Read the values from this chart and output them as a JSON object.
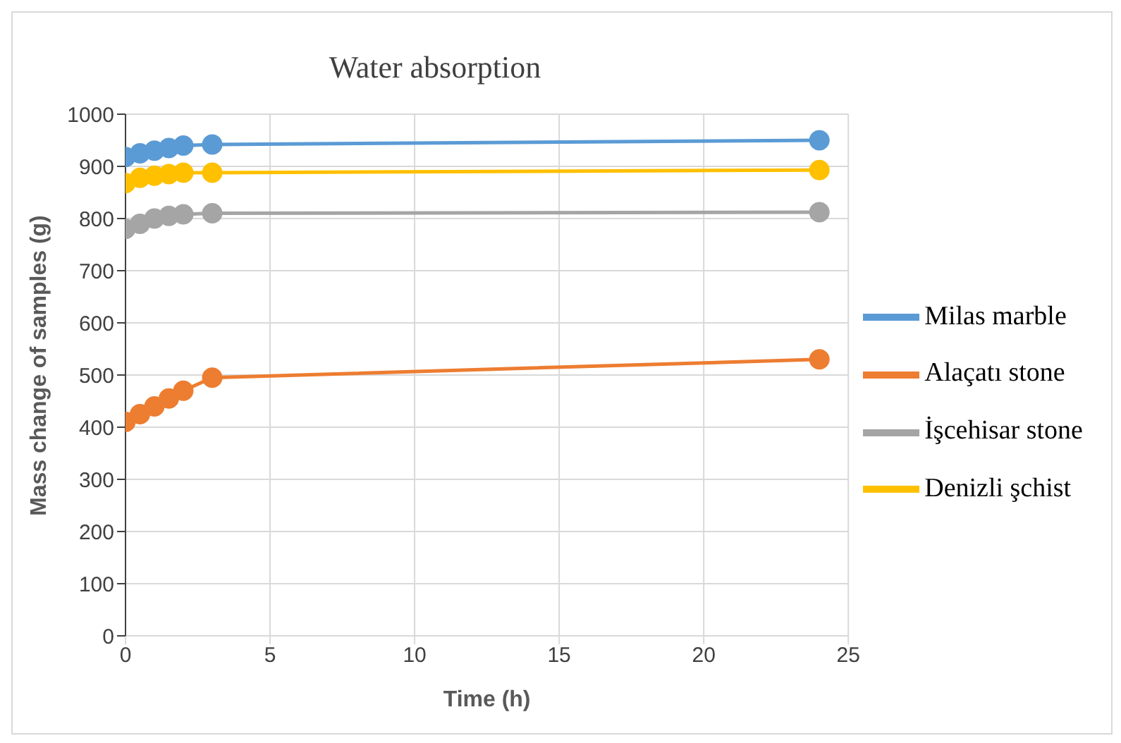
{
  "chart_data": {
    "type": "line",
    "title": "Water absorption",
    "xlabel": "Time (h)",
    "ylabel": "Mass change of samples (g)",
    "x": [
      0,
      0.5,
      1,
      1.5,
      2,
      3,
      24
    ],
    "series": [
      {
        "name": "Milas marble",
        "color": "#5b9bd5",
        "values": [
          918,
          925,
          930,
          935,
          940,
          942,
          950
        ]
      },
      {
        "name": "Alaçatı stone",
        "color": "#ed7d31",
        "values": [
          410,
          425,
          440,
          455,
          470,
          495,
          530
        ]
      },
      {
        "name": "İşcehisar stone",
        "color": "#a5a5a5",
        "values": [
          780,
          790,
          800,
          805,
          808,
          810,
          812
        ]
      },
      {
        "name": "Denizli şchist",
        "color": "#ffc000",
        "values": [
          868,
          878,
          882,
          885,
          888,
          888,
          893
        ]
      }
    ],
    "xlim": [
      0,
      25
    ],
    "xticks": [
      0,
      5,
      10,
      15,
      20,
      25
    ],
    "ylim": [
      0,
      1000
    ],
    "yticks": [
      0,
      100,
      200,
      300,
      400,
      500,
      600,
      700,
      800,
      900,
      1000
    ],
    "grid": true,
    "legend": "right",
    "marker": "circle",
    "line_style": "solid"
  }
}
